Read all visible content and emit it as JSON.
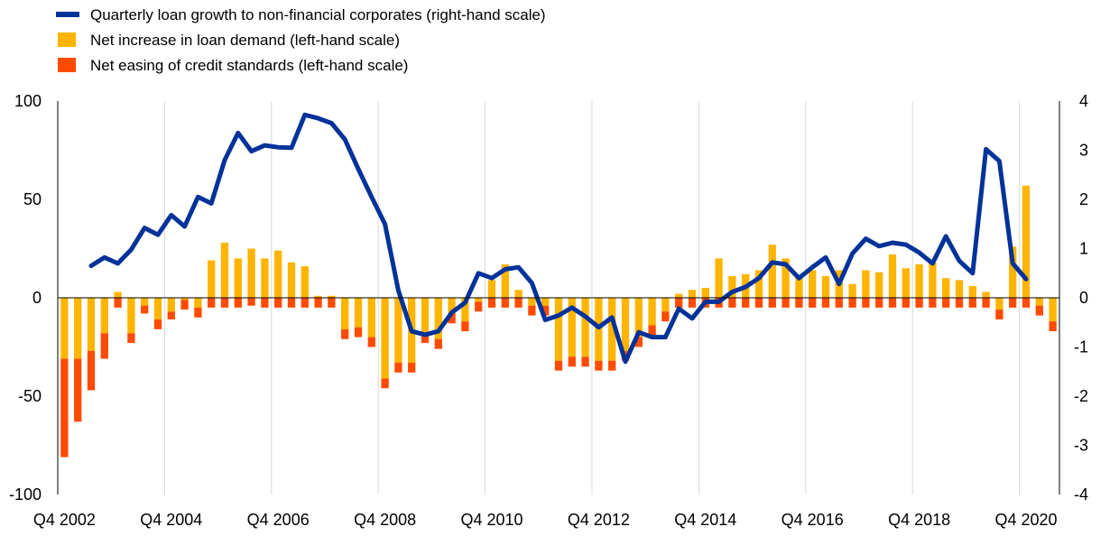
{
  "chart_data": {
    "type": "bar",
    "title": "",
    "legend": {
      "placement": "top-left",
      "entries": [
        {
          "key": "line",
          "label": "Quarterly loan growth to non-financial corporates (right-hand scale)",
          "color": "#003299"
        },
        {
          "key": "demand",
          "label": "Net increase in loan demand (left-hand scale)",
          "color": "#FFB400"
        },
        {
          "key": "standards",
          "label": "Net easing of credit standards (left-hand scale)",
          "color": "#FF4B00"
        }
      ]
    },
    "left_axis": {
      "ylim": [
        -100,
        100
      ],
      "ticks": [
        "100",
        "50",
        "0",
        "-50",
        "-100"
      ],
      "tick_values": [
        100,
        50,
        0,
        -50,
        -100
      ]
    },
    "right_axis": {
      "ylim": [
        -4,
        4
      ],
      "ticks": [
        "4",
        "3",
        "2",
        "1",
        "0",
        "-1",
        "-2",
        "-3",
        "-4"
      ],
      "tick_values": [
        4,
        3,
        2,
        1,
        0,
        -1,
        -2,
        -3,
        -4
      ]
    },
    "x_tick_labels": [
      {
        "label": "Q4 2002",
        "index": 0
      },
      {
        "label": "Q4 2004",
        "index": 8
      },
      {
        "label": "Q4 2006",
        "index": 16
      },
      {
        "label": "Q4 2008",
        "index": 24
      },
      {
        "label": "Q4 2010",
        "index": 32
      },
      {
        "label": "Q4 2012",
        "index": 40
      },
      {
        "label": "Q4 2014",
        "index": 48
      },
      {
        "label": "Q4 2016",
        "index": 56
      },
      {
        "label": "Q4 2018",
        "index": 64
      },
      {
        "label": "Q4 2020",
        "index": 72
      }
    ],
    "grid": "vertical",
    "x_start": "Q4 2002",
    "demand": [
      -31,
      -31,
      -27,
      -18,
      3,
      -18,
      -4,
      -11,
      -7,
      -1,
      -5,
      19,
      28,
      20,
      25,
      20,
      24,
      18,
      16,
      1,
      1,
      -16,
      -15,
      -20,
      -41,
      -33,
      -33,
      -18,
      -21,
      -8,
      -12,
      -2,
      9,
      17,
      4,
      -4,
      -4,
      -32,
      -30,
      -30,
      -32,
      -32,
      -27,
      -20,
      -14,
      -7,
      2,
      4,
      5,
      20,
      11,
      12,
      14,
      27,
      20,
      11,
      14,
      11,
      14,
      7,
      14,
      13,
      22,
      15,
      17,
      18,
      10,
      9,
      6,
      3,
      -6,
      26,
      57,
      -4,
      -12
    ],
    "standards": [
      -50,
      -32,
      -20,
      -13,
      -5,
      -5,
      -4,
      -5,
      -4,
      -5,
      -5,
      -5,
      -5,
      -5,
      -4,
      -5,
      -5,
      -5,
      -5,
      -5,
      -5,
      -5,
      -5,
      -5,
      -5,
      -5,
      -5,
      -5,
      -5,
      -5,
      -5,
      -5,
      -5,
      -5,
      -5,
      -5,
      -5,
      -5,
      -5,
      -5,
      -5,
      -5,
      -5,
      -5,
      -5,
      -5,
      -5,
      -5,
      -5,
      -5,
      -5,
      -5,
      -5,
      -5,
      -5,
      -5,
      -5,
      -5,
      -5,
      -5,
      -5,
      -5,
      -5,
      -5,
      -5,
      -5,
      -5,
      -5,
      -5,
      -5,
      -5,
      -5,
      -5,
      -5,
      -5
    ],
    "loan_growth": [
      null,
      null,
      0.65,
      0.82,
      0.7,
      0.98,
      1.42,
      1.28,
      1.68,
      1.45,
      2.05,
      1.92,
      2.8,
      3.35,
      2.98,
      3.1,
      3.06,
      3.05,
      3.72,
      3.65,
      3.55,
      3.22,
      2.62,
      2.05,
      1.5,
      0.15,
      -0.68,
      -0.75,
      -0.68,
      -0.3,
      -0.1,
      0.5,
      0.4,
      0.58,
      0.62,
      0.3,
      -0.45,
      -0.36,
      -0.2,
      -0.38,
      -0.6,
      -0.4,
      -1.3,
      -0.7,
      -0.8,
      -0.8,
      -0.22,
      -0.42,
      -0.08,
      -0.08,
      0.12,
      0.22,
      0.4,
      0.72,
      0.68,
      0.4,
      0.62,
      0.82,
      0.28,
      0.9,
      1.2,
      1.05,
      1.12,
      1.08,
      0.92,
      0.7,
      1.25,
      0.75,
      0.5,
      3.02,
      2.78,
      0.7,
      0.38,
      null
    ]
  }
}
